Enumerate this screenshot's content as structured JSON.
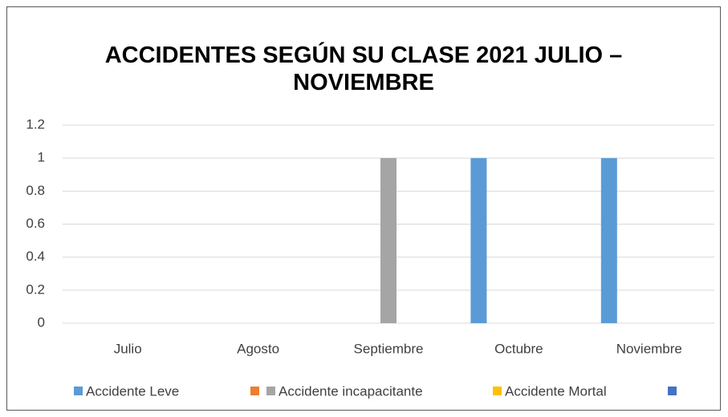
{
  "chart_data": {
    "type": "bar",
    "title": "ACCIDENTES SEGÚN SU CLASE 2021 JULIO – NOVIEMBRE",
    "categories": [
      "Julio",
      "Agosto",
      "Septiembre",
      "Octubre",
      "Noviembre"
    ],
    "series": [
      {
        "name": "Accidente Leve",
        "color": "#5b9bd5",
        "values": [
          0,
          0,
          0,
          1,
          1
        ]
      },
      {
        "color": "#ed7d31",
        "values": [
          0,
          0,
          0,
          0,
          0
        ]
      },
      {
        "name": "Accidente incapacitante",
        "color": "#a5a5a5",
        "values": [
          0,
          0,
          1,
          0,
          0
        ]
      },
      {
        "name": "Accidente Mortal",
        "color": "#ffc000",
        "values": [
          0,
          0,
          0,
          0,
          0
        ]
      },
      {
        "color": "#4472c4",
        "values": [
          0,
          0,
          0,
          0,
          0
        ]
      }
    ],
    "ylim": [
      0,
      1.2
    ],
    "yticks": [
      0,
      0.2,
      0.4,
      0.6,
      0.8,
      1,
      1.2
    ],
    "grid": true,
    "legend": "bottom"
  }
}
